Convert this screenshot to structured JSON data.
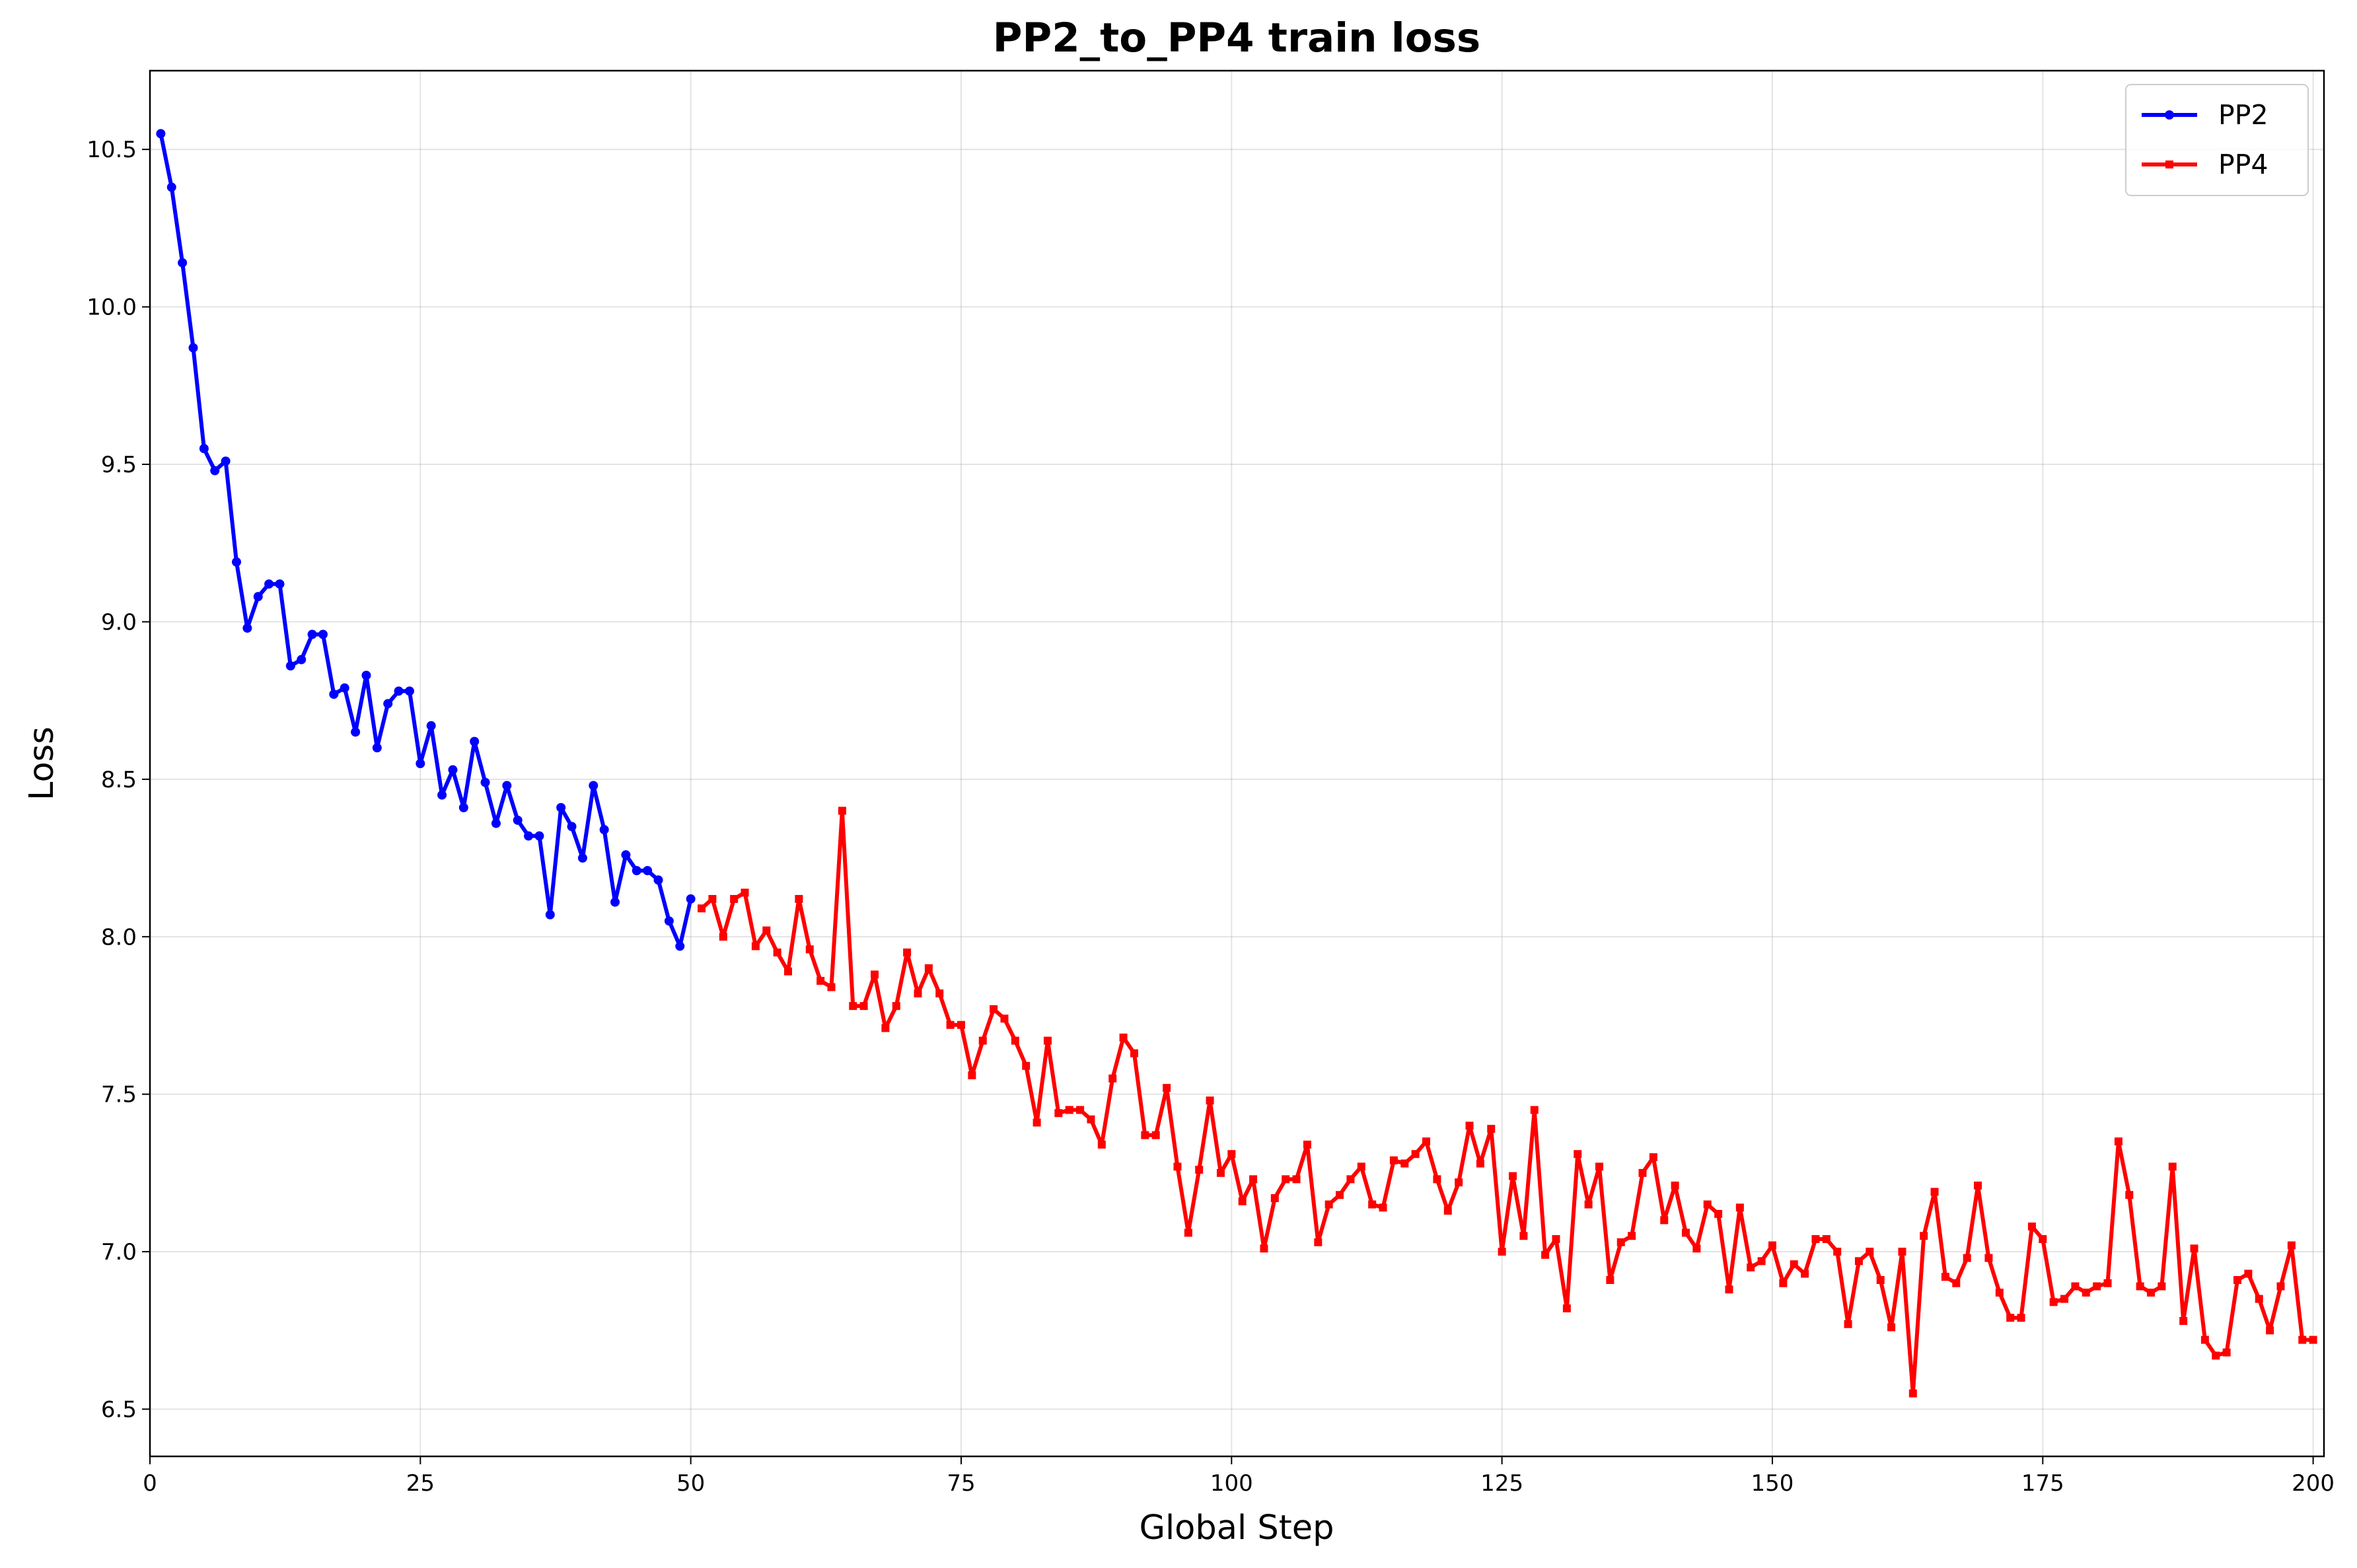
{
  "chart_data": {
    "type": "line",
    "title": "PP2_to_PP4 train loss",
    "xlabel": "Global Step",
    "ylabel": "Loss",
    "xlim": [
      0,
      201
    ],
    "ylim": [
      6.35,
      10.75
    ],
    "xticks": [
      0,
      25,
      50,
      75,
      100,
      125,
      150,
      175,
      200
    ],
    "yticks": [
      6.5,
      7.0,
      7.5,
      8.0,
      8.5,
      9.0,
      9.5,
      10.0,
      10.5
    ],
    "grid": true,
    "legend_position": "top-right",
    "series": [
      {
        "name": "PP2",
        "color": "#0000ff",
        "marker": "circle",
        "x_start": 1,
        "values": [
          10.55,
          10.38,
          10.14,
          9.87,
          9.55,
          9.48,
          9.51,
          9.19,
          8.98,
          9.08,
          9.12,
          9.12,
          8.86,
          8.88,
          8.96,
          8.96,
          8.77,
          8.79,
          8.65,
          8.83,
          8.6,
          8.74,
          8.78,
          8.78,
          8.55,
          8.67,
          8.45,
          8.53,
          8.41,
          8.62,
          8.49,
          8.36,
          8.48,
          8.37,
          8.32,
          8.32,
          8.07,
          8.41,
          8.35,
          8.25,
          8.48,
          8.34,
          8.11,
          8.26,
          8.21,
          8.21,
          8.18,
          8.05,
          7.97,
          8.12
        ]
      },
      {
        "name": "PP4",
        "color": "#ff0000",
        "marker": "square",
        "x_start": 51,
        "values": [
          8.09,
          8.12,
          8.0,
          8.12,
          8.14,
          7.97,
          8.02,
          7.95,
          7.89,
          8.12,
          7.96,
          7.86,
          7.84,
          8.4,
          7.78,
          7.78,
          7.88,
          7.71,
          7.78,
          7.95,
          7.82,
          7.9,
          7.82,
          7.72,
          7.72,
          7.56,
          7.67,
          7.77,
          7.74,
          7.67,
          7.59,
          7.41,
          7.67,
          7.44,
          7.45,
          7.45,
          7.42,
          7.34,
          7.55,
          7.68,
          7.63,
          7.37,
          7.37,
          7.52,
          7.27,
          7.06,
          7.26,
          7.48,
          7.25,
          7.31,
          7.16,
          7.23,
          7.01,
          7.17,
          7.23,
          7.23,
          7.34,
          7.03,
          7.15,
          7.18,
          7.23,
          7.27,
          7.15,
          7.14,
          7.29,
          7.28,
          7.31,
          7.35,
          7.23,
          7.13,
          7.22,
          7.4,
          7.28,
          7.39,
          7.0,
          7.24,
          7.05,
          7.45,
          6.99,
          7.04,
          6.82,
          7.31,
          7.15,
          7.27,
          6.91,
          7.03,
          7.05,
          7.25,
          7.3,
          7.1,
          7.21,
          7.06,
          7.01,
          7.15,
          7.12,
          6.88,
          7.14,
          6.95,
          6.97,
          7.02,
          6.9,
          6.96,
          6.93,
          7.04,
          7.04,
          7.0,
          6.77,
          6.97,
          7.0,
          6.91,
          6.76,
          7.0,
          6.55,
          7.05,
          7.19,
          6.92,
          6.9,
          6.98,
          7.21,
          6.98,
          6.87,
          6.79,
          6.79,
          7.08,
          7.04,
          6.84,
          6.85,
          6.89,
          6.87,
          6.89,
          6.9,
          7.35,
          7.18,
          6.89,
          6.87,
          6.89,
          7.27,
          6.78,
          7.01,
          6.72,
          6.67,
          6.68,
          6.91,
          6.93,
          6.85,
          6.75,
          6.89,
          7.02,
          6.72,
          6.72
        ]
      }
    ]
  }
}
